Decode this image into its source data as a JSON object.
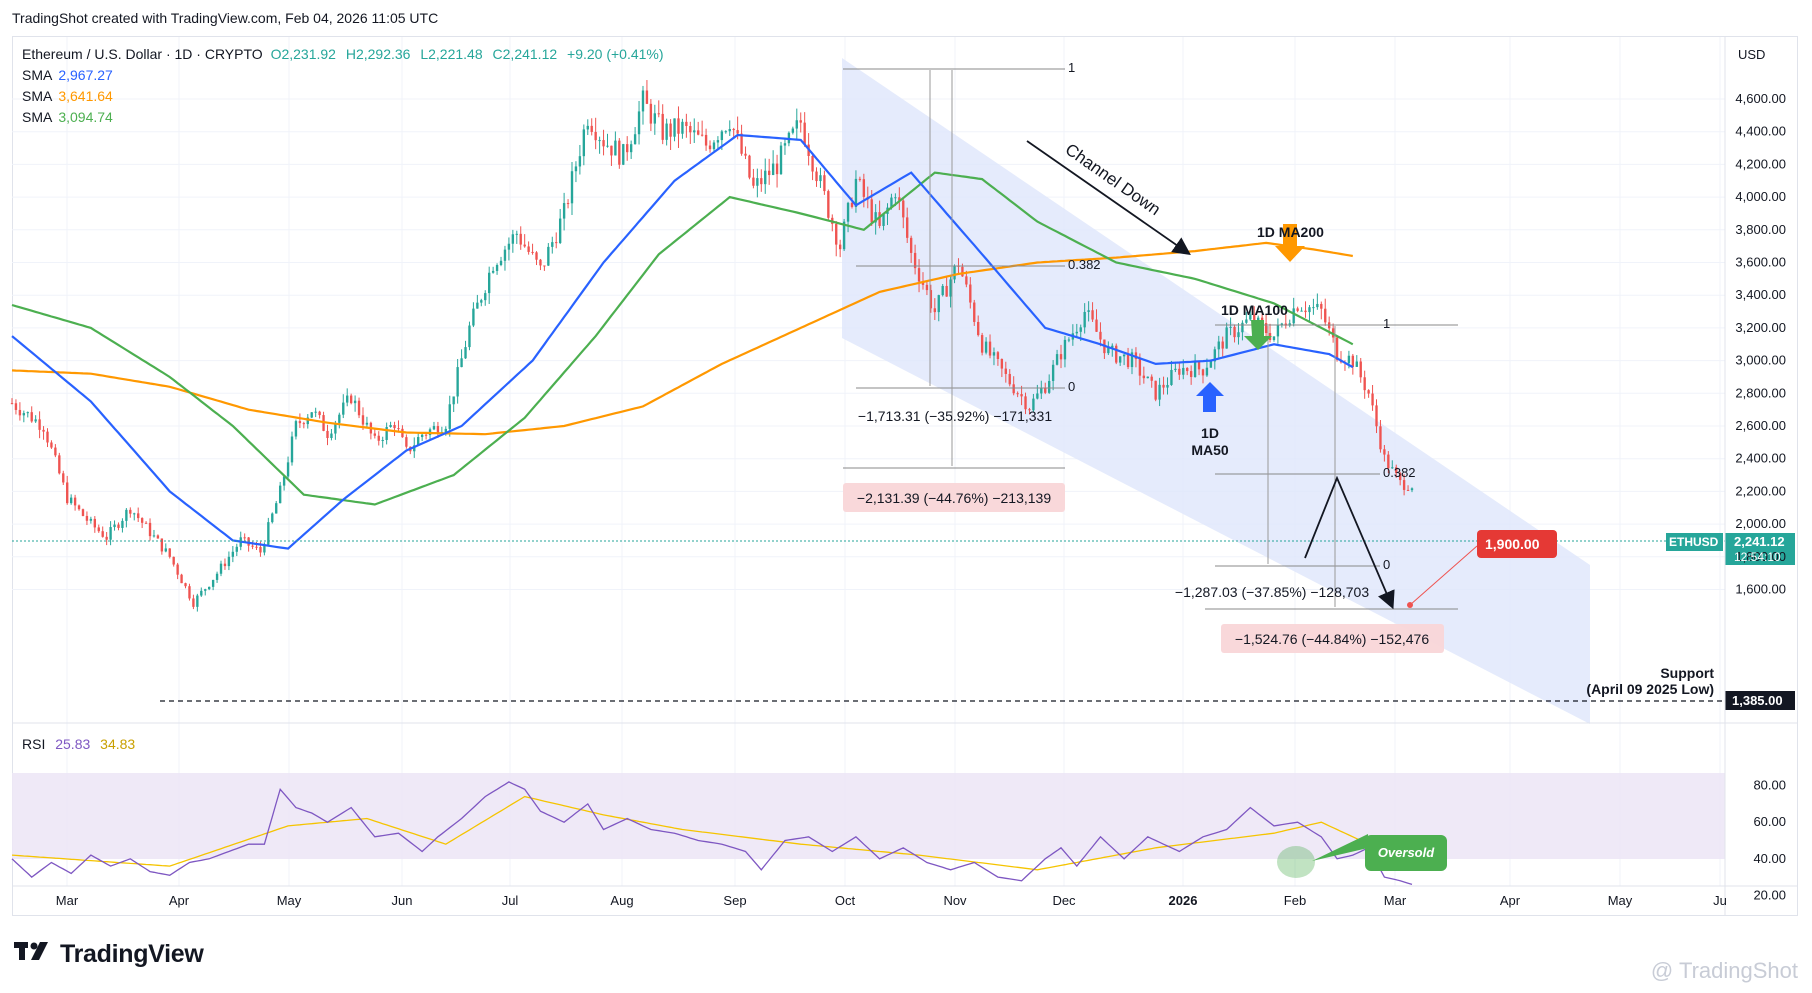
{
  "header": {
    "text": "TradingShot created with TradingView.com, Feb 04, 2026 11:05 UTC"
  },
  "legend": {
    "symbol": "Ethereum / U.S. Dollar · 1D · CRYPTO",
    "open": "O2,231.92",
    "high": "H2,292.36",
    "low": "L2,221.48",
    "close": "C2,241.12",
    "change": "+9.20 (+0.41%)",
    "sma": [
      {
        "label": "SMA",
        "value": "2,967.27",
        "color": "#2962ff"
      },
      {
        "label": "SMA",
        "value": "3,641.64",
        "color": "#ff9800"
      },
      {
        "label": "SMA",
        "value": "3,094.74",
        "color": "#4caf50"
      }
    ]
  },
  "rsi_legend": {
    "label": "RSI",
    "value": "25.83",
    "ma": "34.83",
    "color": "#7e57c2",
    "ma_color": "#f5c400"
  },
  "currency": "USD",
  "ticker": {
    "symbol": "ETHUSD",
    "price": "2,241.12",
    "countdown": "12:54:10"
  },
  "support": {
    "price": "1,385.00",
    "label1": "Support",
    "label2": "(April 09 2025 Low)"
  },
  "target": {
    "price": "1,900.00"
  },
  "annotations": {
    "channel": "Channel Down",
    "ma200": "1D MA200",
    "ma100": "1D MA100",
    "ma50a": "1D",
    "ma50b": "MA50",
    "oversold": "Oversold",
    "fib1_top": "1",
    "fib1_382": "0.382",
    "fib1_zero": "0",
    "fib2_top": "1",
    "fib2_382": "0.382",
    "fib2_zero": "0",
    "m1": "−1,713.31 (−35.92%) −171,331",
    "m2": "−2,131.39 (−44.76%) −213,139",
    "m3": "−1,287.03 (−37.85%) −128,703",
    "m4": "−1,524.76 (−44.84%) −152,476"
  },
  "brand": {
    "logo": "TradingView",
    "watermark": "@ TradingShot"
  },
  "colors": {
    "up": "#26a69a",
    "down": "#ef5350",
    "ma50": "#2962ff",
    "ma100": "#4caf50",
    "ma200": "#ff9800",
    "rsi": "#7e57c2",
    "rsima": "#f5c400",
    "channel": "#dfe6fb"
  },
  "chart_data": {
    "type": "candlestick",
    "title": "Ethereum / U.S. Dollar · 1D · CRYPTO",
    "y_ticks": [
      "4,600.00",
      "4,400.00",
      "4,200.00",
      "4,000.00",
      "3,800.00",
      "3,600.00",
      "3,400.00",
      "3,200.00",
      "3,000.00",
      "2,800.00",
      "2,600.00",
      "2,400.00",
      "2,200.00",
      "2,000.00",
      "1,800.00",
      "1,600.00"
    ],
    "x_ticks": [
      "Mar",
      "Apr",
      "May",
      "Jun",
      "Jul",
      "Aug",
      "Sep",
      "Oct",
      "Nov",
      "Dec",
      "2026",
      "Feb",
      "Mar",
      "Apr",
      "May",
      "Ju"
    ],
    "rsi_ticks": [
      "80.00",
      "60.00",
      "40.00",
      "20.00"
    ],
    "price_path": [
      [
        0,
        2740
      ],
      [
        8,
        2600
      ],
      [
        14,
        2160
      ],
      [
        20,
        2000
      ],
      [
        24,
        1920
      ],
      [
        30,
        2100
      ],
      [
        35,
        1950
      ],
      [
        40,
        1800
      ],
      [
        46,
        1520
      ],
      [
        52,
        1700
      ],
      [
        58,
        1900
      ],
      [
        63,
        1830
      ],
      [
        68,
        2200
      ],
      [
        72,
        2600
      ],
      [
        76,
        2700
      ],
      [
        80,
        2560
      ],
      [
        86,
        2780
      ],
      [
        92,
        2500
      ],
      [
        97,
        2620
      ],
      [
        100,
        2440
      ],
      [
        104,
        2550
      ],
      [
        110,
        2620
      ],
      [
        116,
        3200
      ],
      [
        122,
        3600
      ],
      [
        128,
        3780
      ],
      [
        134,
        3550
      ],
      [
        140,
        3900
      ],
      [
        146,
        4500
      ],
      [
        150,
        4350
      ],
      [
        155,
        4250
      ],
      [
        160,
        4580
      ],
      [
        165,
        4400
      ],
      [
        170,
        4420
      ],
      [
        176,
        4320
      ],
      [
        182,
        4480
      ],
      [
        188,
        4050
      ],
      [
        194,
        4200
      ],
      [
        200,
        4460
      ],
      [
        206,
        4000
      ],
      [
        210,
        3700
      ],
      [
        214,
        4100
      ],
      [
        220,
        3800
      ],
      [
        224,
        4050
      ],
      [
        228,
        3650
      ],
      [
        234,
        3300
      ],
      [
        240,
        3600
      ],
      [
        246,
        3100
      ],
      [
        252,
        2900
      ],
      [
        258,
        2720
      ],
      [
        262,
        2850
      ],
      [
        266,
        3050
      ],
      [
        272,
        3300
      ],
      [
        278,
        3050
      ],
      [
        284,
        3000
      ],
      [
        290,
        2800
      ],
      [
        296,
        2950
      ],
      [
        302,
        2950
      ],
      [
        308,
        3150
      ],
      [
        314,
        3250
      ],
      [
        320,
        3150
      ],
      [
        326,
        3350
      ],
      [
        332,
        3300
      ],
      [
        336,
        3050
      ],
      [
        340,
        3000
      ],
      [
        344,
        2800
      ],
      [
        348,
        2400
      ],
      [
        352,
        2250
      ],
      [
        355,
        2241
      ]
    ],
    "ma_path_50": [
      [
        0,
        3150
      ],
      [
        20,
        2750
      ],
      [
        40,
        2200
      ],
      [
        56,
        1900
      ],
      [
        70,
        1850
      ],
      [
        84,
        2150
      ],
      [
        100,
        2450
      ],
      [
        114,
        2600
      ],
      [
        132,
        3000
      ],
      [
        150,
        3600
      ],
      [
        168,
        4100
      ],
      [
        184,
        4380
      ],
      [
        200,
        4350
      ],
      [
        214,
        3950
      ],
      [
        228,
        4150
      ],
      [
        246,
        3650
      ],
      [
        262,
        3200
      ],
      [
        276,
        3100
      ],
      [
        290,
        2980
      ],
      [
        304,
        3000
      ],
      [
        320,
        3100
      ],
      [
        334,
        3040
      ],
      [
        340,
        2960
      ]
    ],
    "ma_path_100": [
      [
        0,
        3340
      ],
      [
        20,
        3200
      ],
      [
        40,
        2900
      ],
      [
        56,
        2600
      ],
      [
        74,
        2180
      ],
      [
        92,
        2120
      ],
      [
        112,
        2300
      ],
      [
        130,
        2650
      ],
      [
        148,
        3150
      ],
      [
        164,
        3650
      ],
      [
        182,
        4000
      ],
      [
        200,
        3900
      ],
      [
        216,
        3800
      ],
      [
        234,
        4150
      ],
      [
        246,
        4110
      ],
      [
        260,
        3850
      ],
      [
        280,
        3600
      ],
      [
        300,
        3500
      ],
      [
        320,
        3350
      ],
      [
        340,
        3100
      ]
    ],
    "ma_path_200": [
      [
        0,
        2940
      ],
      [
        20,
        2920
      ],
      [
        40,
        2840
      ],
      [
        60,
        2700
      ],
      [
        80,
        2620
      ],
      [
        100,
        2560
      ],
      [
        120,
        2550
      ],
      [
        140,
        2600
      ],
      [
        160,
        2720
      ],
      [
        180,
        2980
      ],
      [
        200,
        3200
      ],
      [
        220,
        3420
      ],
      [
        240,
        3530
      ],
      [
        260,
        3600
      ],
      [
        280,
        3630
      ],
      [
        300,
        3670
      ],
      [
        318,
        3720
      ],
      [
        330,
        3680
      ],
      [
        340,
        3640
      ]
    ],
    "rsi_path": [
      [
        0,
        40
      ],
      [
        5,
        30
      ],
      [
        10,
        38
      ],
      [
        15,
        32
      ],
      [
        20,
        42
      ],
      [
        25,
        36
      ],
      [
        30,
        40
      ],
      [
        35,
        33
      ],
      [
        40,
        31
      ],
      [
        45,
        38
      ],
      [
        50,
        40
      ],
      [
        55,
        44
      ],
      [
        60,
        48
      ],
      [
        64,
        48
      ],
      [
        68,
        78
      ],
      [
        72,
        68
      ],
      [
        76,
        65
      ],
      [
        80,
        60
      ],
      [
        86,
        68
      ],
      [
        92,
        52
      ],
      [
        98,
        54
      ],
      [
        104,
        44
      ],
      [
        108,
        52
      ],
      [
        114,
        62
      ],
      [
        120,
        74
      ],
      [
        126,
        82
      ],
      [
        130,
        78
      ],
      [
        134,
        66
      ],
      [
        140,
        60
      ],
      [
        146,
        70
      ],
      [
        150,
        56
      ],
      [
        156,
        62
      ],
      [
        162,
        56
      ],
      [
        168,
        54
      ],
      [
        174,
        50
      ],
      [
        180,
        48
      ],
      [
        186,
        44
      ],
      [
        190,
        34
      ],
      [
        196,
        50
      ],
      [
        202,
        52
      ],
      [
        208,
        44
      ],
      [
        214,
        52
      ],
      [
        220,
        40
      ],
      [
        226,
        46
      ],
      [
        232,
        38
      ],
      [
        238,
        34
      ],
      [
        244,
        38
      ],
      [
        250,
        30
      ],
      [
        256,
        28
      ],
      [
        262,
        40
      ],
      [
        266,
        46
      ],
      [
        270,
        36
      ],
      [
        276,
        52
      ],
      [
        282,
        40
      ],
      [
        288,
        52
      ],
      [
        292,
        48
      ],
      [
        296,
        44
      ],
      [
        302,
        52
      ],
      [
        308,
        56
      ],
      [
        314,
        68
      ],
      [
        320,
        58
      ],
      [
        326,
        60
      ],
      [
        332,
        52
      ],
      [
        336,
        40
      ],
      [
        340,
        42
      ],
      [
        344,
        46
      ],
      [
        348,
        30
      ],
      [
        352,
        28
      ],
      [
        355,
        26
      ]
    ],
    "rsi_ma_path": [
      [
        0,
        42
      ],
      [
        40,
        36
      ],
      [
        70,
        58
      ],
      [
        90,
        62
      ],
      [
        110,
        48
      ],
      [
        130,
        74
      ],
      [
        150,
        64
      ],
      [
        170,
        56
      ],
      [
        200,
        48
      ],
      [
        230,
        42
      ],
      [
        260,
        34
      ],
      [
        290,
        46
      ],
      [
        320,
        54
      ],
      [
        332,
        60
      ],
      [
        344,
        48
      ],
      [
        355,
        34
      ]
    ],
    "support_level": 1385,
    "target_level": 1900,
    "current_price": 2241.12
  }
}
